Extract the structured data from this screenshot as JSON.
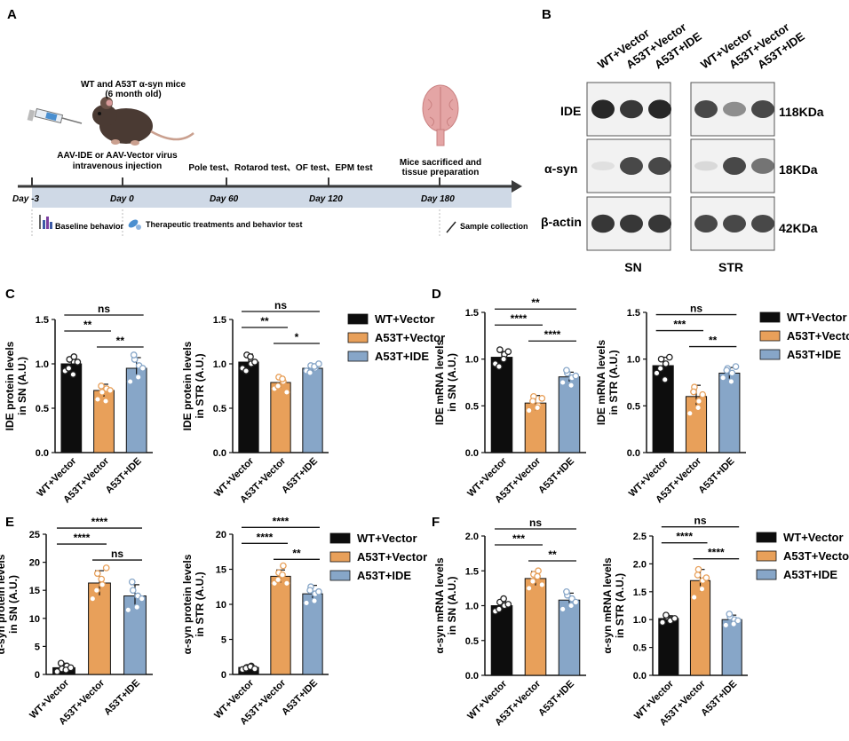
{
  "panel_labels": {
    "A": "A",
    "B": "B",
    "C": "C",
    "D": "D",
    "E": "E",
    "F": "F"
  },
  "timeline": {
    "mice": [
      "WT and A53T α-syn mice",
      "(6 month old)"
    ],
    "injection": [
      "AAV-IDE or AAV-Vector virus",
      "intravenous injection"
    ],
    "tests": "Pole test、Rotarod test、OF test、EPM test",
    "sacrifice": [
      "Mice sacrificed and",
      "tissue preparation"
    ],
    "days": [
      "Day -3",
      "Day 0",
      "Day 60",
      "Day 120",
      "Day 180"
    ],
    "legend": [
      "Baseline behavior",
      "Therapeutic treatments and behavior test",
      "Sample collection"
    ],
    "colors": {
      "bar": "#cfd9e6",
      "arrow": "#3a3a3a"
    }
  },
  "blot": {
    "lanes": [
      "WT+Vector",
      "A53T+Vector",
      "A53T+IDE"
    ],
    "rows": [
      "IDE",
      "α-syn",
      "β-actin"
    ],
    "sizes": [
      "118KDa",
      "18KDa",
      "42KDa"
    ],
    "regions": [
      "SN",
      "STR"
    ],
    "intensity": {
      "SN": [
        [
          0.95,
          0.9,
          0.95
        ],
        [
          0.15,
          0.85,
          0.85
        ],
        [
          0.9,
          0.9,
          0.9
        ]
      ],
      "STR": [
        [
          0.85,
          0.6,
          0.85
        ],
        [
          0.2,
          0.85,
          0.7
        ],
        [
          0.85,
          0.85,
          0.85
        ]
      ]
    }
  },
  "groups": [
    "WT+Vector",
    "A53T+Vector",
    "A53T+IDE"
  ],
  "colors": {
    "WT+Vector": "#0d0d0d",
    "A53T+Vector": "#e8a05a",
    "A53T+IDE": "#87a6c8"
  },
  "legends": {
    "C": [
      "WT+Vector",
      "A53T+Vector",
      "A53T+IDE"
    ],
    "D": [
      "WT+Vector",
      "A53T+Vector",
      "A53T+IDE"
    ],
    "E": [
      "WT+Vector",
      "A53T+Vector",
      "A53T+IDE"
    ],
    "F": [
      "WT+Vector",
      "A53T+Vector",
      "A53T+IDE"
    ]
  },
  "chart_data": [
    {
      "id": "C1",
      "type": "bar",
      "ylabel": [
        "IDE protein levels",
        "in SN  (A.U.)"
      ],
      "ylim": [
        0,
        1.5
      ],
      "yticks": [
        "0.0",
        "0.5",
        "1.0",
        "1.5"
      ],
      "categories": [
        "WT+Vector",
        "A53T+Vector",
        "A53T+IDE"
      ],
      "values": [
        1.0,
        0.7,
        0.95
      ],
      "errors": [
        0.07,
        0.07,
        0.12
      ],
      "points": [
        [
          0.92,
          1.05,
          1.08,
          0.95,
          0.88,
          1.02
        ],
        [
          0.6,
          0.68,
          0.72,
          0.75,
          0.58,
          0.7
        ],
        [
          0.8,
          1.05,
          0.98,
          1.1,
          0.85,
          0.95
        ]
      ],
      "comparisons": [
        {
          "a": 0,
          "b": 1,
          "label": "**"
        },
        {
          "a": 1,
          "b": 2,
          "label": "**"
        },
        {
          "a": 0,
          "b": 2,
          "label": "ns"
        }
      ]
    },
    {
      "id": "C2",
      "type": "bar",
      "ylabel": [
        "IDE protein levels",
        "in STR (A.U.)"
      ],
      "ylim": [
        0,
        1.5
      ],
      "yticks": [
        "0.0",
        "0.5",
        "1.0",
        "1.5"
      ],
      "categories": [
        "WT+Vector",
        "A53T+Vector",
        "A53T+IDE"
      ],
      "values": [
        1.02,
        0.79,
        0.95
      ],
      "errors": [
        0.09,
        0.06,
        0.04
      ],
      "points": [
        [
          0.95,
          1.1,
          1.0,
          0.92,
          1.08,
          1.02
        ],
        [
          0.72,
          0.85,
          0.8,
          0.75,
          0.83,
          0.68
        ],
        [
          0.92,
          0.98,
          0.95,
          0.9,
          0.97,
          1.0
        ]
      ],
      "comparisons": [
        {
          "a": 0,
          "b": 1,
          "label": "**"
        },
        {
          "a": 1,
          "b": 2,
          "label": "*"
        },
        {
          "a": 0,
          "b": 2,
          "label": "ns"
        }
      ]
    },
    {
      "id": "D1",
      "type": "bar",
      "ylabel": [
        "IDE mRNA levels",
        "in SN (A.U.)"
      ],
      "ylim": [
        0,
        1.5
      ],
      "yticks": [
        "0.0",
        "0.5",
        "1.0",
        "1.5"
      ],
      "categories": [
        "WT+Vector",
        "A53T+Vector",
        "A53T+IDE"
      ],
      "values": [
        1.02,
        0.53,
        0.81
      ],
      "errors": [
        0.06,
        0.08,
        0.05
      ],
      "points": [
        [
          0.95,
          1.1,
          1.05,
          0.92,
          1.0,
          1.08
        ],
        [
          0.45,
          0.6,
          0.5,
          0.55,
          0.48,
          0.58
        ],
        [
          0.75,
          0.85,
          0.8,
          0.88,
          0.72,
          0.82
        ]
      ],
      "comparisons": [
        {
          "a": 0,
          "b": 1,
          "label": "****"
        },
        {
          "a": 1,
          "b": 2,
          "label": "****"
        },
        {
          "a": 0,
          "b": 2,
          "label": "**"
        }
      ]
    },
    {
      "id": "D2",
      "type": "bar",
      "ylabel": [
        "IDE mRNA levels",
        "in STR (A.U.)"
      ],
      "ylim": [
        0,
        1.5
      ],
      "yticks": [
        "0.0",
        "0.5",
        "1.0",
        "1.5"
      ],
      "categories": [
        "WT+Vector",
        "A53T+Vector",
        "A53T+IDE"
      ],
      "values": [
        0.93,
        0.6,
        0.85
      ],
      "errors": [
        0.09,
        0.12,
        0.06
      ],
      "points": [
        [
          0.85,
          1.0,
          0.95,
          0.9,
          0.78,
          1.02
        ],
        [
          0.42,
          0.7,
          0.55,
          0.65,
          0.48,
          0.62
        ],
        [
          0.8,
          0.9,
          0.85,
          0.88,
          0.76,
          0.92
        ]
      ],
      "comparisons": [
        {
          "a": 0,
          "b": 1,
          "label": "***"
        },
        {
          "a": 1,
          "b": 2,
          "label": "**"
        },
        {
          "a": 0,
          "b": 2,
          "label": "ns"
        }
      ]
    },
    {
      "id": "E1",
      "type": "bar",
      "ylabel": [
        "α-syn protein levels",
        "in SN (A.U.)"
      ],
      "ylim": [
        0,
        25
      ],
      "yticks": [
        "0",
        "5",
        "10",
        "15",
        "20",
        "25"
      ],
      "categories": [
        "WT+Vector",
        "A53T+Vector",
        "A53T+IDE"
      ],
      "values": [
        1.2,
        16.3,
        14.0
      ],
      "errors": [
        0.8,
        2.2,
        2.0
      ],
      "points": [
        [
          0.5,
          1.0,
          1.5,
          2.0,
          0.8,
          1.2
        ],
        [
          13.5,
          18.0,
          16.0,
          15.0,
          17.0,
          19.0
        ],
        [
          11.5,
          15.0,
          14.0,
          16.5,
          12.0,
          13.5
        ]
      ],
      "comparisons": [
        {
          "a": 0,
          "b": 1,
          "label": "****"
        },
        {
          "a": 1,
          "b": 2,
          "label": "ns"
        },
        {
          "a": 0,
          "b": 2,
          "label": "****"
        }
      ]
    },
    {
      "id": "E2",
      "type": "bar",
      "ylabel": [
        "α-syn protein levels",
        "in STR (A.U.)"
      ],
      "ylim": [
        0,
        20
      ],
      "yticks": [
        "0",
        "5",
        "10",
        "15",
        "20"
      ],
      "categories": [
        "WT+Vector",
        "A53T+Vector",
        "A53T+IDE"
      ],
      "values": [
        1.0,
        14.0,
        11.5
      ],
      "errors": [
        0.3,
        0.9,
        1.2
      ],
      "points": [
        [
          0.7,
          1.0,
          1.2,
          0.9,
          1.1,
          0.8
        ],
        [
          13.0,
          14.5,
          15.5,
          13.5,
          14.2,
          13.0
        ],
        [
          10.2,
          12.5,
          11.5,
          12.0,
          10.5,
          11.8
        ]
      ],
      "comparisons": [
        {
          "a": 0,
          "b": 1,
          "label": "****"
        },
        {
          "a": 1,
          "b": 2,
          "label": "**"
        },
        {
          "a": 0,
          "b": 2,
          "label": "****"
        }
      ]
    },
    {
      "id": "F1",
      "type": "bar",
      "ylabel": [
        "α-syn mRNA levels",
        "in SN (A.U.)"
      ],
      "ylim": [
        0,
        2.0
      ],
      "yticks": [
        "0.0",
        "0.5",
        "1.0",
        "1.5",
        "2.0"
      ],
      "categories": [
        "WT+Vector",
        "A53T+Vector",
        "A53T+IDE"
      ],
      "values": [
        1.0,
        1.39,
        1.08
      ],
      "errors": [
        0.06,
        0.1,
        0.1
      ],
      "points": [
        [
          0.92,
          1.05,
          1.0,
          0.95,
          1.1,
          1.02
        ],
        [
          1.25,
          1.45,
          1.5,
          1.35,
          1.42,
          1.3
        ],
        [
          0.95,
          1.15,
          1.1,
          1.2,
          1.0,
          1.05
        ]
      ],
      "comparisons": [
        {
          "a": 0,
          "b": 1,
          "label": "***"
        },
        {
          "a": 1,
          "b": 2,
          "label": "**"
        },
        {
          "a": 0,
          "b": 2,
          "label": "ns"
        }
      ]
    },
    {
      "id": "F2",
      "type": "bar",
      "ylabel": [
        "α-syn mRNA levels",
        "in STR (A.U.)"
      ],
      "ylim": [
        0,
        2.5
      ],
      "yticks": [
        "0.0",
        "0.5",
        "1.0",
        "1.5",
        "2.0",
        "2.5"
      ],
      "categories": [
        "WT+Vector",
        "A53T+Vector",
        "A53T+IDE"
      ],
      "values": [
        1.02,
        1.7,
        1.0
      ],
      "errors": [
        0.05,
        0.2,
        0.08
      ],
      "points": [
        [
          0.95,
          1.05,
          1.0,
          1.08,
          0.98,
          1.02
        ],
        [
          1.4,
          1.9,
          1.7,
          1.8,
          1.55,
          1.75
        ],
        [
          0.9,
          1.05,
          1.0,
          1.1,
          0.92,
          0.98
        ]
      ],
      "comparisons": [
        {
          "a": 0,
          "b": 1,
          "label": "****"
        },
        {
          "a": 1,
          "b": 2,
          "label": "****"
        },
        {
          "a": 0,
          "b": 2,
          "label": "ns"
        }
      ]
    }
  ]
}
